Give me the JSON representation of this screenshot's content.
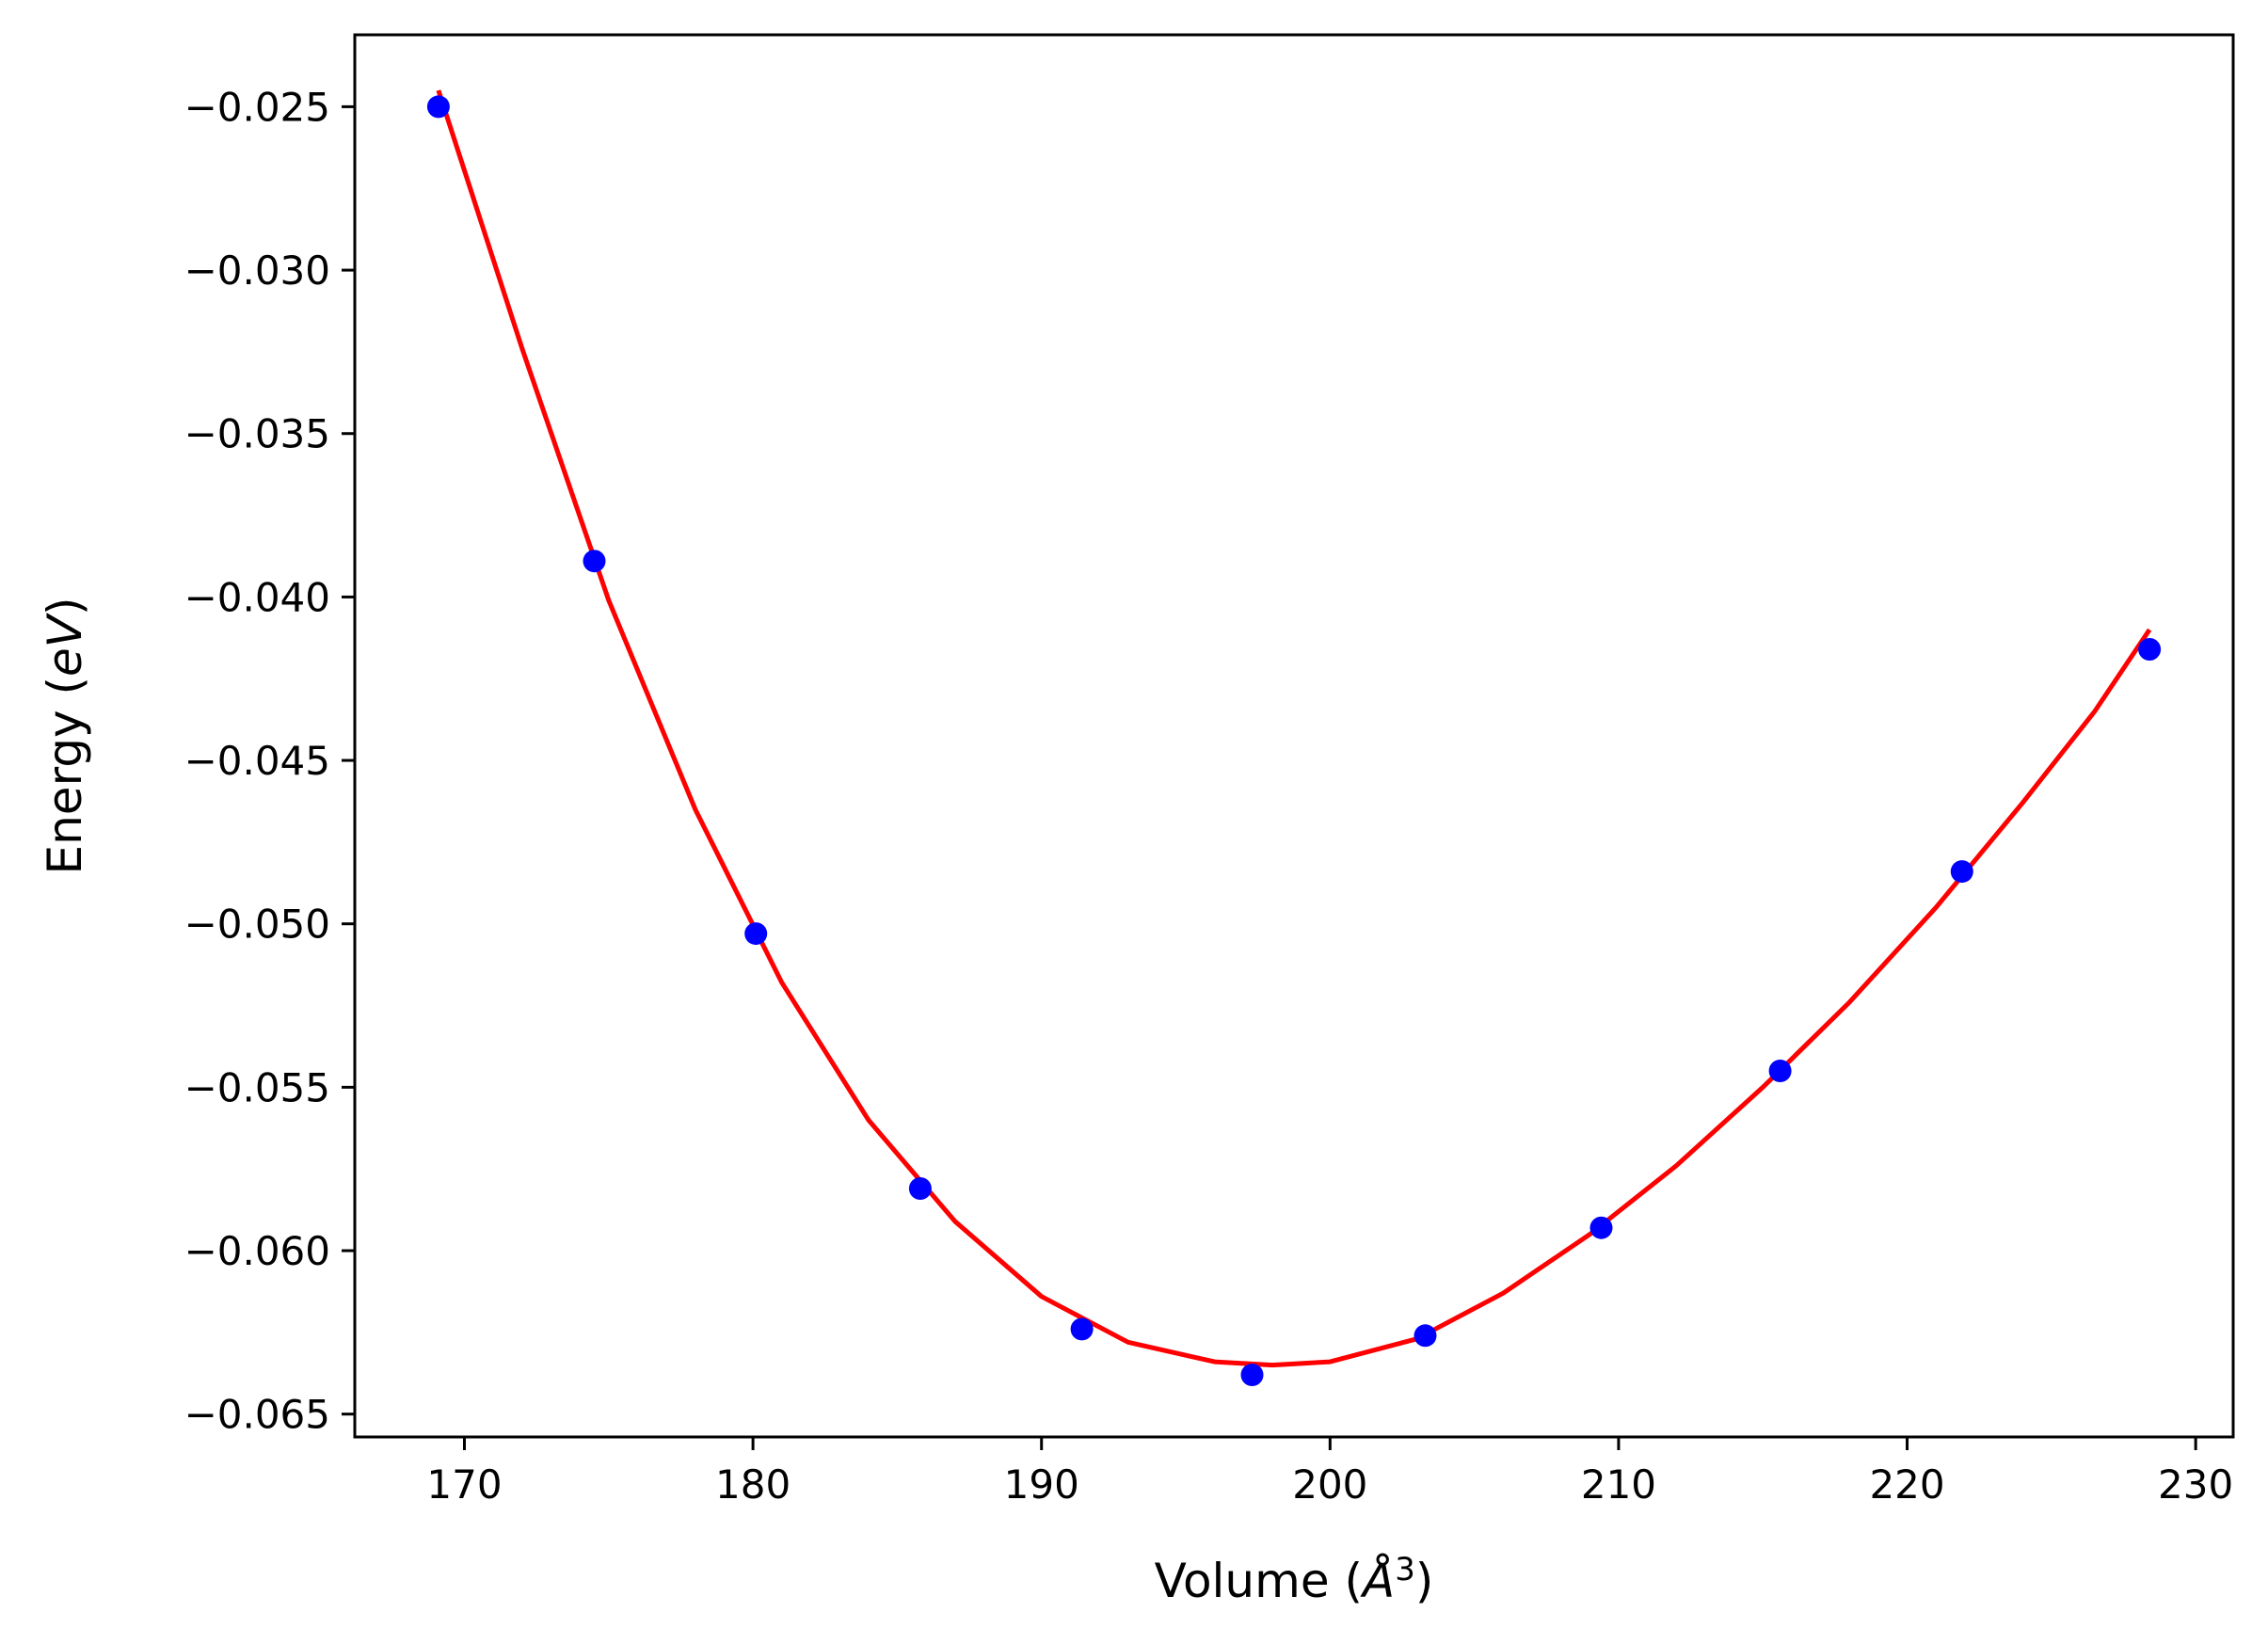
{
  "chart_data": {
    "type": "scatter",
    "title": "",
    "xlabel": {
      "prefix": "Volume (",
      "symbol": "Å",
      "superscript": "3",
      "suffix": ")"
    },
    "ylabel": {
      "prefix": "Energy (",
      "symbol": "eV",
      "suffix": ")"
    },
    "xlim": [
      166.2,
      231.3
    ],
    "ylim": [
      -0.0657,
      -0.0228
    ],
    "xticks": [
      170,
      180,
      190,
      200,
      210,
      220,
      230
    ],
    "xtick_labels": [
      "170",
      "180",
      "190",
      "200",
      "210",
      "220",
      "230"
    ],
    "yticks": [
      -0.025,
      -0.03,
      -0.035,
      -0.04,
      -0.045,
      -0.05,
      -0.055,
      -0.06,
      -0.065
    ],
    "ytick_labels": [
      "−0.025",
      "−0.030",
      "−0.035",
      "−0.040",
      "−0.045",
      "−0.050",
      "−0.055",
      "−0.060",
      "−0.065"
    ],
    "grid": false,
    "legend": "none",
    "series": [
      {
        "kind": "points",
        "color": "#0000ff",
        "x": [
          169.1,
          174.5,
          180.1,
          185.8,
          191.4,
          197.3,
          203.3,
          209.4,
          215.6,
          221.9,
          228.4
        ],
        "y": [
          -0.025,
          -0.0389,
          -0.0503,
          -0.0581,
          -0.0624,
          -0.0638,
          -0.0626,
          -0.0593,
          -0.0545,
          -0.0484,
          -0.0416
        ]
      },
      {
        "kind": "fit-curve",
        "color": "#ff0000",
        "x": [
          169.1,
          172.0,
          175.0,
          178.0,
          181.0,
          184.0,
          187.0,
          190.0,
          193.0,
          196.0,
          198.0,
          200.0,
          203.0,
          206.0,
          209.0,
          212.0,
          215.0,
          218.0,
          221.0,
          224.0,
          226.5,
          228.4
        ],
        "y": [
          -0.0245,
          -0.0324,
          -0.0401,
          -0.0465,
          -0.0518,
          -0.056,
          -0.0591,
          -0.0614,
          -0.0628,
          -0.0634,
          -0.0635,
          -0.0634,
          -0.0627,
          -0.0613,
          -0.0595,
          -0.0574,
          -0.055,
          -0.0524,
          -0.0495,
          -0.0463,
          -0.0435,
          -0.041
        ]
      }
    ]
  }
}
